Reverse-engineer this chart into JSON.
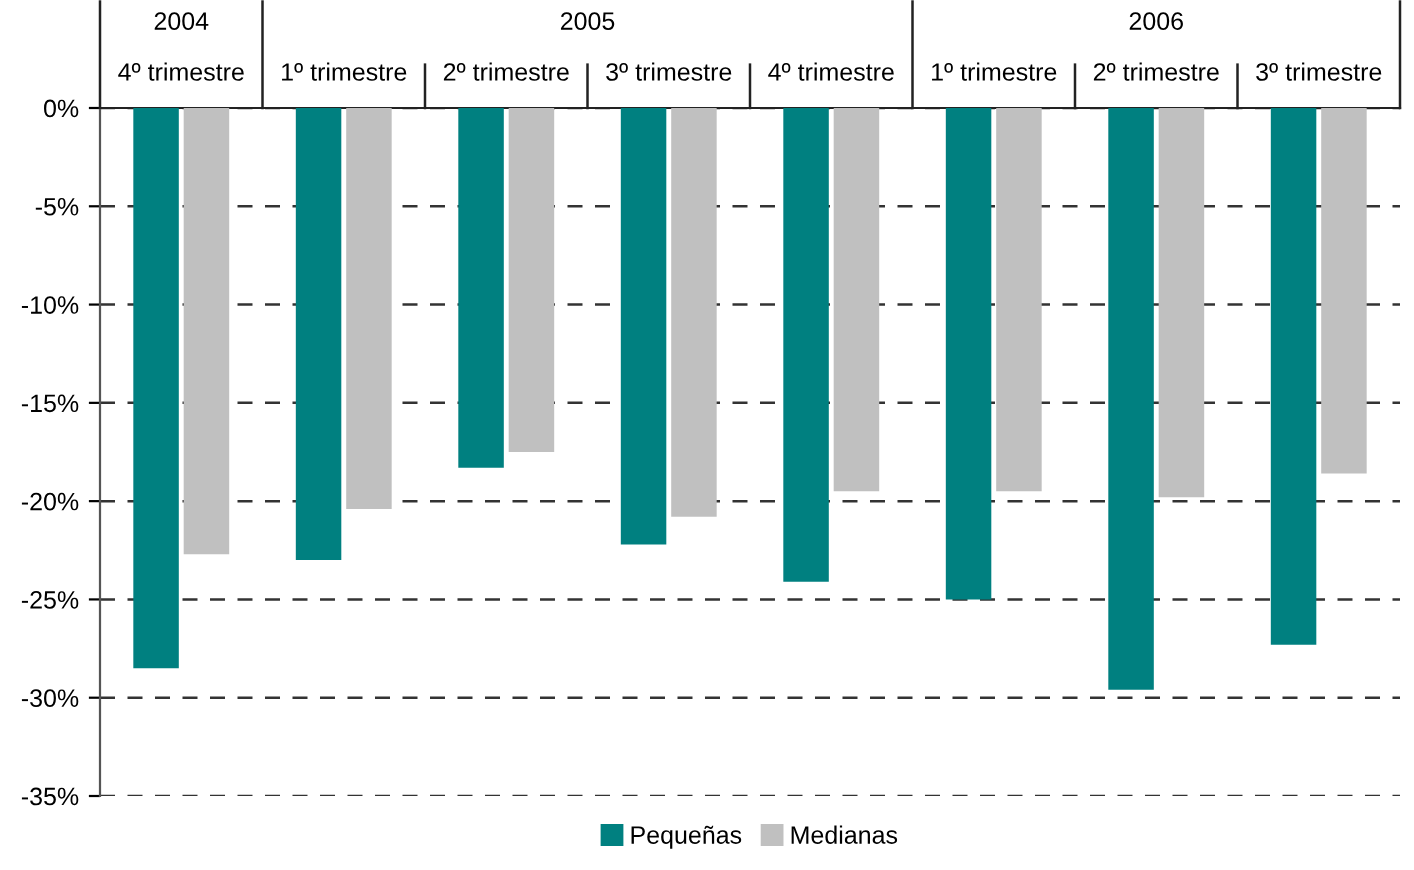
{
  "chart_data": {
    "type": "bar",
    "categories": [
      "4º trimestre",
      "1º trimestre",
      "2º trimestre",
      "3º trimestre",
      "4º trimestre",
      "1º trimestre",
      "2º trimestre",
      "3º trimestre"
    ],
    "series": [
      {
        "name": "Pequeñas",
        "color": "#008080",
        "values": [
          -28.5,
          -23.0,
          -18.3,
          -22.2,
          -24.1,
          -25.0,
          -29.6,
          -27.3
        ]
      },
      {
        "name": "Medianas",
        "color": "#c0c0c0",
        "values": [
          -22.7,
          -20.4,
          -17.5,
          -20.8,
          -19.5,
          -19.5,
          -19.8,
          -18.6
        ]
      }
    ],
    "annotations": [
      "2004",
      "2005",
      "2006"
    ],
    "ylim": [
      -35,
      0
    ],
    "yticks": [
      {
        "value": 0,
        "label": "0%"
      },
      {
        "value": -5,
        "label": "-5%"
      },
      {
        "value": -10,
        "label": "-10%"
      },
      {
        "value": -15,
        "label": "-15%"
      },
      {
        "value": -20,
        "label": "-20%"
      },
      {
        "value": -25,
        "label": "-25%"
      },
      {
        "value": -30,
        "label": "-30%"
      },
      {
        "value": -35,
        "label": "-35%"
      }
    ],
    "grid": "y",
    "legend": "bottom"
  }
}
